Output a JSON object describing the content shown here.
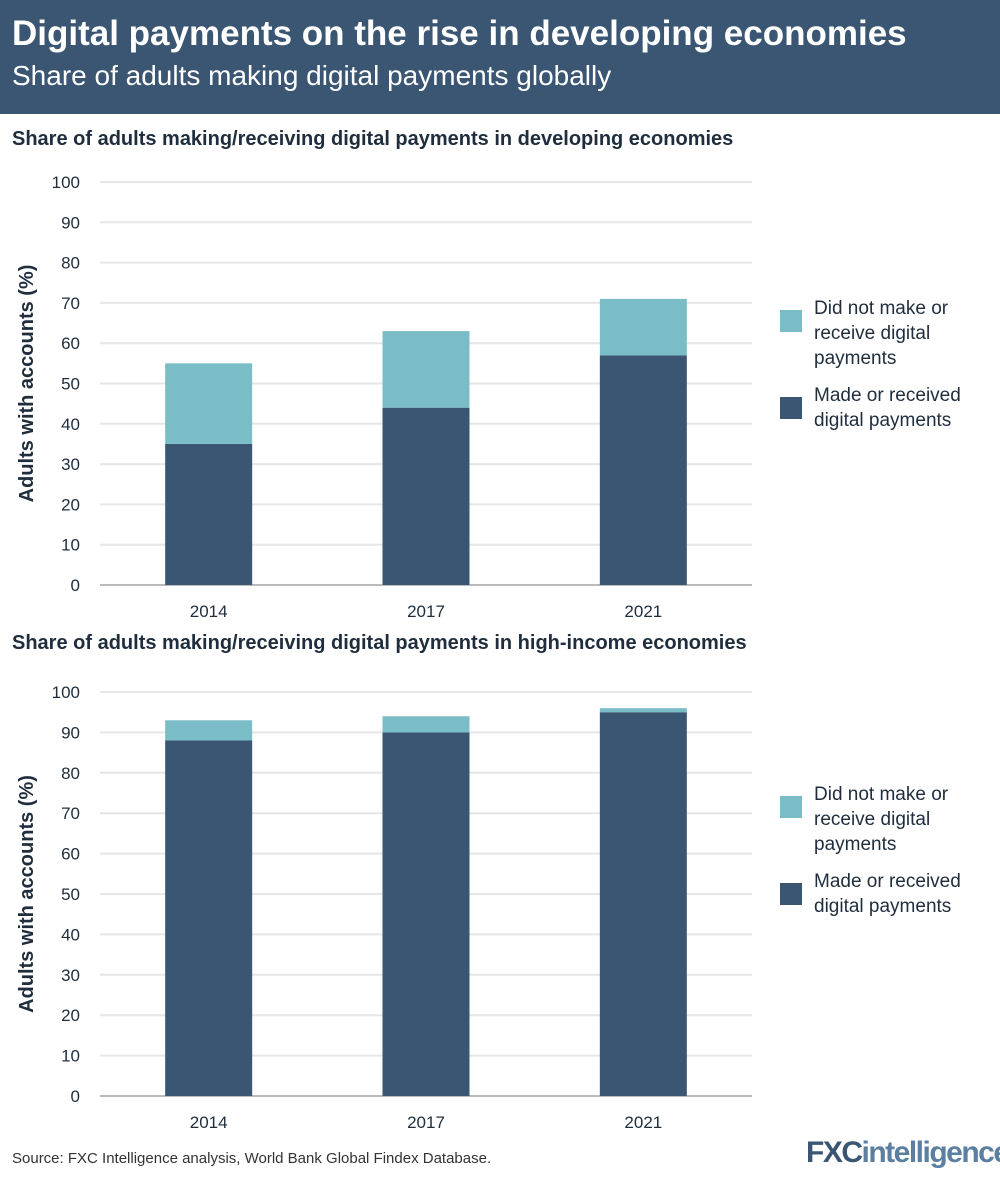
{
  "header": {
    "title": "Digital payments on the rise in developing economies",
    "subtitle": "Share of adults making digital payments globally"
  },
  "colors": {
    "header_bg": "#3a5673",
    "made": "#3a5673",
    "not_made": "#7bbdc6",
    "grid": "#e6e6e6"
  },
  "chart_data": [
    {
      "type": "bar",
      "stacked": true,
      "title": "Share of adults making/receiving digital payments in developing economies",
      "ylabel": "Adults with accounts (%)",
      "xlabel": "",
      "ylim": [
        0,
        100
      ],
      "yticks": [
        0,
        10,
        20,
        30,
        40,
        50,
        60,
        70,
        80,
        90,
        100
      ],
      "grid": true,
      "legend_position": "right",
      "categories": [
        "2014",
        "2017",
        "2021"
      ],
      "series": [
        {
          "name": "Made or received digital payments",
          "color": "#3a5673",
          "values": [
            35,
            44,
            57
          ]
        },
        {
          "name": "Did not make or receive digital payments",
          "color": "#7bbdc6",
          "values": [
            20,
            19,
            14
          ]
        }
      ],
      "legend": [
        "Did not make or receive digital payments",
        "Made or received digital payments"
      ]
    },
    {
      "type": "bar",
      "stacked": true,
      "title": "Share of adults making/receiving digital payments in high-income economies",
      "ylabel": "Adults with accounts (%)",
      "xlabel": "",
      "ylim": [
        0,
        100
      ],
      "yticks": [
        0,
        10,
        20,
        30,
        40,
        50,
        60,
        70,
        80,
        90,
        100
      ],
      "grid": true,
      "legend_position": "right",
      "categories": [
        "2014",
        "2017",
        "2021"
      ],
      "series": [
        {
          "name": "Made or received digital payments",
          "color": "#3a5673",
          "values": [
            88,
            90,
            95
          ]
        },
        {
          "name": "Did not make or receive digital payments",
          "color": "#7bbdc6",
          "values": [
            5,
            4,
            1
          ]
        }
      ],
      "legend": [
        "Did not make or receive digital payments",
        "Made or received digital payments"
      ]
    }
  ],
  "footer": {
    "source": "Source: FXC Intelligence analysis, World Bank Global Findex Database.",
    "logo": "FXCintelligence"
  }
}
